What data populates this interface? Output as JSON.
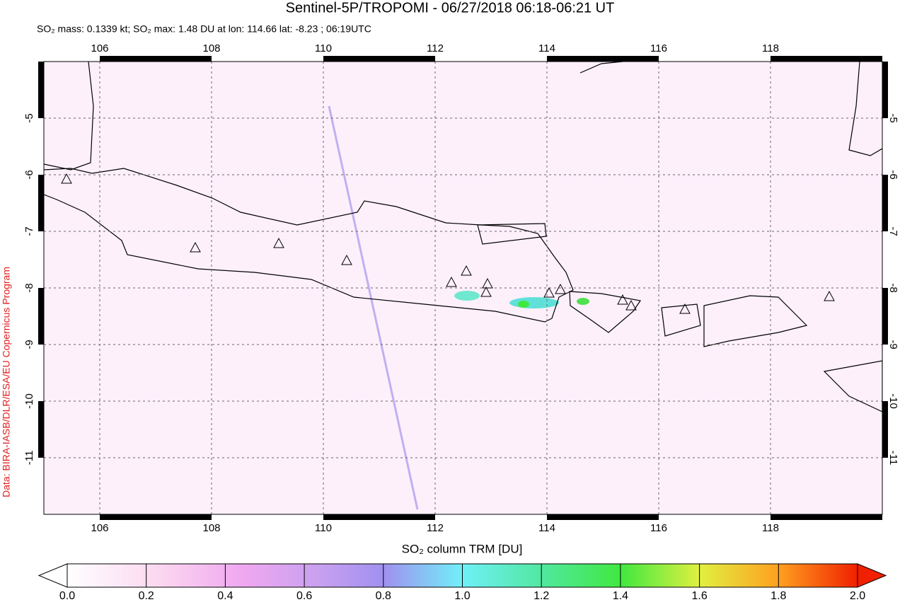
{
  "chart_data": {
    "type": "map",
    "title": "Sentinel-5P/TROPOMI - 06/27/2018 06:18-06:21 UT",
    "subtitle": "SO₂ mass: 0.1339 kt; SO₂ max: 1.48 DU at lon: 114.66 lat: -8.23 ; 06:19UTC",
    "credit": "Data: BIRA-IASB/DLR/ESA/EU Copernicus Program",
    "xlim": [
      105,
      120
    ],
    "ylim": [
      -12,
      -4
    ],
    "xticks": [
      106,
      108,
      110,
      112,
      114,
      116,
      118
    ],
    "yticks": [
      -5,
      -6,
      -7,
      -8,
      -9,
      -10,
      -11
    ],
    "grid": true,
    "colorbar": {
      "label": "SO₂ column TRM [DU]",
      "lim": [
        0,
        2
      ],
      "ticks": [
        {
          "value": 0,
          "label": "0.0"
        },
        {
          "value": 0.2,
          "label": "0.2"
        },
        {
          "value": 0.4,
          "label": "0.4"
        },
        {
          "value": 0.6,
          "label": "0.6"
        },
        {
          "value": 0.8,
          "label": "0.8"
        },
        {
          "value": 1,
          "label": "1.0"
        },
        {
          "value": 1.2,
          "label": "1.2"
        },
        {
          "value": 1.4,
          "label": "1.4"
        },
        {
          "value": 1.6,
          "label": "1.6"
        },
        {
          "value": 1.8,
          "label": "1.8"
        },
        {
          "value": 2,
          "label": "2.0"
        }
      ]
    }
  }
}
